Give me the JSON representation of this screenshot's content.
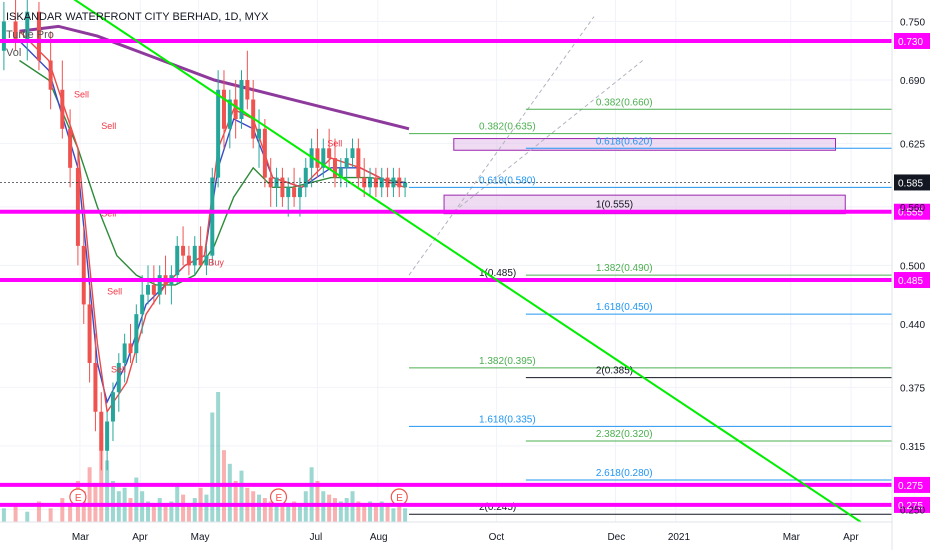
{
  "header": {
    "title": "ISKANDAR WATERFRONT CITY BERHAD, 1D, MYX",
    "indicator": "Turtle Pro",
    "volume_label": "Vol"
  },
  "colors": {
    "magenta": "#ff00ff",
    "trendline": "#00ee00",
    "ema_purple": "#8e3a9c",
    "ema_green": "#2e8b3a",
    "ema_blue": "#3a49c8",
    "ema_red": "#e84a4a",
    "bull": "#26a69a",
    "bear": "#ef5350",
    "fib_green": "#4caf50",
    "fib_blue": "#2196f3",
    "fib_black": "#131722",
    "zone_fill": "#e1bee7",
    "zone_stroke": "#9c27b0",
    "price_tag": "#131722"
  },
  "chart_data": {
    "type": "candlestick",
    "title": "ISKANDAR WATERFRONT CITY BERHAD, 1D, MYX",
    "ylim": [
      0.237,
      0.772
    ],
    "y_ticks": [
      0.75,
      0.69,
      0.625,
      0.56,
      0.5,
      0.44,
      0.375,
      0.315,
      0.25
    ],
    "x_ticks": [
      "Mar",
      "Apr",
      "May",
      "Jul",
      "Aug",
      "Oct",
      "Dec",
      "2021",
      "Mar",
      "Apr"
    ],
    "x_tick_days": [
      1,
      32,
      62,
      123,
      154,
      215,
      276,
      307,
      366,
      397
    ],
    "x_range_days": [
      -40,
      418
    ],
    "last_price": 0.585,
    "horizontal_levels": [
      {
        "price": 0.73,
        "label": "0.730"
      },
      {
        "price": 0.555,
        "label": "0.555"
      },
      {
        "price": 0.485,
        "label": "0.485"
      },
      {
        "price": 0.275,
        "label": "0.275"
      },
      {
        "price": 0.275,
        "label": "0.275"
      }
    ],
    "trendline": {
      "start": {
        "day": -15,
        "price": 0.79
      },
      "end": {
        "day": 402,
        "price": 0.237
      }
    },
    "fib_levels": [
      {
        "label": "0.382(0.660)",
        "price": 0.66,
        "start_day": 230,
        "color": "green"
      },
      {
        "label": "0.382(0.635)",
        "price": 0.635,
        "start_day": 170,
        "color": "green"
      },
      {
        "label": "0.618(0.620)",
        "price": 0.62,
        "start_day": 230,
        "color": "blue"
      },
      {
        "label": "0.618(0.580)",
        "price": 0.58,
        "start_day": 170,
        "color": "blue"
      },
      {
        "label": "1(0.555)",
        "price": 0.555,
        "start_day": 230,
        "color": "black"
      },
      {
        "label": "1(0.485)",
        "price": 0.485,
        "start_day": 170,
        "color": "black"
      },
      {
        "label": "1.382(0.490)",
        "price": 0.49,
        "start_day": 230,
        "color": "green"
      },
      {
        "label": "1.618(0.450)",
        "price": 0.45,
        "start_day": 230,
        "color": "blue"
      },
      {
        "label": "1.382(0.395)",
        "price": 0.395,
        "start_day": 170,
        "color": "green"
      },
      {
        "label": "2(0.385)",
        "price": 0.385,
        "start_day": 230,
        "color": "black"
      },
      {
        "label": "1.618(0.335)",
        "price": 0.335,
        "start_day": 170,
        "color": "blue"
      },
      {
        "label": "2.382(0.320)",
        "price": 0.32,
        "start_day": 230,
        "color": "green"
      },
      {
        "label": "2.618(0.280)",
        "price": 0.28,
        "start_day": 230,
        "color": "blue"
      },
      {
        "label": "2(0.245)",
        "price": 0.245,
        "start_day": 170,
        "color": "black"
      }
    ],
    "zones": [
      {
        "price_top": 0.63,
        "price_bottom": 0.618,
        "start_day": 193,
        "end_day": 389
      },
      {
        "price_top": 0.572,
        "price_bottom": 0.553,
        "start_day": 188,
        "end_day": 394
      }
    ],
    "dashed_projection": [
      {
        "start": {
          "day": 170,
          "price": 0.49
        },
        "end": {
          "day": 265,
          "price": 0.755
        }
      },
      {
        "start": {
          "day": 193,
          "price": 0.555
        },
        "end": {
          "day": 290,
          "price": 0.71
        }
      }
    ],
    "candles": [
      {
        "d": -38,
        "o": 0.72,
        "h": 0.77,
        "l": 0.7,
        "c": 0.75
      },
      {
        "d": -32,
        "o": 0.75,
        "h": 0.78,
        "l": 0.72,
        "c": 0.73
      },
      {
        "d": -26,
        "o": 0.73,
        "h": 0.78,
        "l": 0.71,
        "c": 0.76
      },
      {
        "d": -20,
        "o": 0.76,
        "h": 0.77,
        "l": 0.7,
        "c": 0.71
      },
      {
        "d": -14,
        "o": 0.71,
        "h": 0.74,
        "l": 0.66,
        "c": 0.68
      },
      {
        "d": -8,
        "o": 0.68,
        "h": 0.71,
        "l": 0.63,
        "c": 0.64
      },
      {
        "d": -4,
        "o": 0.64,
        "h": 0.66,
        "l": 0.58,
        "c": 0.6
      },
      {
        "d": 0,
        "o": 0.6,
        "h": 0.62,
        "l": 0.5,
        "c": 0.52
      },
      {
        "d": 3,
        "o": 0.52,
        "h": 0.54,
        "l": 0.44,
        "c": 0.46
      },
      {
        "d": 6,
        "o": 0.46,
        "h": 0.48,
        "l": 0.38,
        "c": 0.4
      },
      {
        "d": 9,
        "o": 0.4,
        "h": 0.43,
        "l": 0.33,
        "c": 0.35
      },
      {
        "d": 12,
        "o": 0.35,
        "h": 0.37,
        "l": 0.29,
        "c": 0.31
      },
      {
        "d": 15,
        "o": 0.31,
        "h": 0.35,
        "l": 0.29,
        "c": 0.34
      },
      {
        "d": 18,
        "o": 0.34,
        "h": 0.38,
        "l": 0.32,
        "c": 0.37
      },
      {
        "d": 21,
        "o": 0.37,
        "h": 0.41,
        "l": 0.35,
        "c": 0.4
      },
      {
        "d": 24,
        "o": 0.4,
        "h": 0.43,
        "l": 0.38,
        "c": 0.42
      },
      {
        "d": 27,
        "o": 0.42,
        "h": 0.44,
        "l": 0.4,
        "c": 0.41
      },
      {
        "d": 30,
        "o": 0.41,
        "h": 0.46,
        "l": 0.4,
        "c": 0.45
      },
      {
        "d": 33,
        "o": 0.45,
        "h": 0.49,
        "l": 0.43,
        "c": 0.47
      },
      {
        "d": 36,
        "o": 0.47,
        "h": 0.5,
        "l": 0.46,
        "c": 0.48
      },
      {
        "d": 39,
        "o": 0.48,
        "h": 0.5,
        "l": 0.46,
        "c": 0.47
      },
      {
        "d": 42,
        "o": 0.47,
        "h": 0.5,
        "l": 0.46,
        "c": 0.49
      },
      {
        "d": 45,
        "o": 0.49,
        "h": 0.51,
        "l": 0.47,
        "c": 0.48
      },
      {
        "d": 48,
        "o": 0.48,
        "h": 0.5,
        "l": 0.46,
        "c": 0.49
      },
      {
        "d": 51,
        "o": 0.49,
        "h": 0.53,
        "l": 0.48,
        "c": 0.52
      },
      {
        "d": 54,
        "o": 0.52,
        "h": 0.54,
        "l": 0.5,
        "c": 0.51
      },
      {
        "d": 57,
        "o": 0.51,
        "h": 0.52,
        "l": 0.49,
        "c": 0.5
      },
      {
        "d": 60,
        "o": 0.5,
        "h": 0.53,
        "l": 0.49,
        "c": 0.52
      },
      {
        "d": 63,
        "o": 0.52,
        "h": 0.54,
        "l": 0.5,
        "c": 0.5
      },
      {
        "d": 66,
        "o": 0.5,
        "h": 0.52,
        "l": 0.49,
        "c": 0.51
      },
      {
        "d": 69,
        "o": 0.51,
        "h": 0.6,
        "l": 0.5,
        "c": 0.59
      },
      {
        "d": 72,
        "o": 0.59,
        "h": 0.7,
        "l": 0.58,
        "c": 0.68
      },
      {
        "d": 75,
        "o": 0.68,
        "h": 0.7,
        "l": 0.62,
        "c": 0.64
      },
      {
        "d": 78,
        "o": 0.64,
        "h": 0.68,
        "l": 0.62,
        "c": 0.67
      },
      {
        "d": 81,
        "o": 0.67,
        "h": 0.69,
        "l": 0.63,
        "c": 0.65
      },
      {
        "d": 84,
        "o": 0.65,
        "h": 0.7,
        "l": 0.64,
        "c": 0.69
      },
      {
        "d": 87,
        "o": 0.69,
        "h": 0.72,
        "l": 0.66,
        "c": 0.67
      },
      {
        "d": 90,
        "o": 0.67,
        "h": 0.69,
        "l": 0.62,
        "c": 0.63
      },
      {
        "d": 93,
        "o": 0.63,
        "h": 0.66,
        "l": 0.6,
        "c": 0.64
      },
      {
        "d": 96,
        "o": 0.64,
        "h": 0.65,
        "l": 0.58,
        "c": 0.59
      },
      {
        "d": 99,
        "o": 0.59,
        "h": 0.61,
        "l": 0.56,
        "c": 0.58
      },
      {
        "d": 102,
        "o": 0.58,
        "h": 0.6,
        "l": 0.56,
        "c": 0.59
      },
      {
        "d": 105,
        "o": 0.59,
        "h": 0.6,
        "l": 0.56,
        "c": 0.57
      },
      {
        "d": 108,
        "o": 0.57,
        "h": 0.59,
        "l": 0.55,
        "c": 0.58
      },
      {
        "d": 111,
        "o": 0.58,
        "h": 0.6,
        "l": 0.56,
        "c": 0.57
      },
      {
        "d": 114,
        "o": 0.57,
        "h": 0.59,
        "l": 0.55,
        "c": 0.58
      },
      {
        "d": 117,
        "o": 0.58,
        "h": 0.61,
        "l": 0.57,
        "c": 0.6
      },
      {
        "d": 120,
        "o": 0.6,
        "h": 0.63,
        "l": 0.58,
        "c": 0.62
      },
      {
        "d": 123,
        "o": 0.62,
        "h": 0.64,
        "l": 0.59,
        "c": 0.6
      },
      {
        "d": 126,
        "o": 0.6,
        "h": 0.63,
        "l": 0.59,
        "c": 0.62
      },
      {
        "d": 129,
        "o": 0.62,
        "h": 0.64,
        "l": 0.6,
        "c": 0.61
      },
      {
        "d": 132,
        "o": 0.61,
        "h": 0.63,
        "l": 0.58,
        "c": 0.59
      },
      {
        "d": 135,
        "o": 0.59,
        "h": 0.61,
        "l": 0.58,
        "c": 0.6
      },
      {
        "d": 138,
        "o": 0.6,
        "h": 0.62,
        "l": 0.58,
        "c": 0.61
      },
      {
        "d": 141,
        "o": 0.61,
        "h": 0.63,
        "l": 0.6,
        "c": 0.62
      },
      {
        "d": 144,
        "o": 0.62,
        "h": 0.63,
        "l": 0.58,
        "c": 0.59
      },
      {
        "d": 147,
        "o": 0.59,
        "h": 0.61,
        "l": 0.57,
        "c": 0.58
      },
      {
        "d": 150,
        "o": 0.58,
        "h": 0.6,
        "l": 0.57,
        "c": 0.59
      },
      {
        "d": 153,
        "o": 0.59,
        "h": 0.6,
        "l": 0.57,
        "c": 0.58
      },
      {
        "d": 156,
        "o": 0.58,
        "h": 0.6,
        "l": 0.57,
        "c": 0.59
      },
      {
        "d": 159,
        "o": 0.59,
        "h": 0.6,
        "l": 0.57,
        "c": 0.58
      },
      {
        "d": 162,
        "o": 0.58,
        "h": 0.6,
        "l": 0.57,
        "c": 0.59
      },
      {
        "d": 165,
        "o": 0.59,
        "h": 0.6,
        "l": 0.57,
        "c": 0.58
      },
      {
        "d": 168,
        "o": 0.58,
        "h": 0.59,
        "l": 0.57,
        "c": 0.585
      }
    ],
    "volume": [
      {
        "d": -38,
        "v": 0.4
      },
      {
        "d": -32,
        "v": 0.5
      },
      {
        "d": -26,
        "v": 0.3
      },
      {
        "d": -20,
        "v": 0.6
      },
      {
        "d": -14,
        "v": 0.4
      },
      {
        "d": -8,
        "v": 0.7
      },
      {
        "d": -4,
        "v": 0.5
      },
      {
        "d": 0,
        "v": 1.2
      },
      {
        "d": 3,
        "v": 0.9
      },
      {
        "d": 6,
        "v": 1.6
      },
      {
        "d": 9,
        "v": 1.1
      },
      {
        "d": 12,
        "v": 2.6
      },
      {
        "d": 15,
        "v": 1.8
      },
      {
        "d": 18,
        "v": 1.2
      },
      {
        "d": 21,
        "v": 0.9
      },
      {
        "d": 24,
        "v": 1.0
      },
      {
        "d": 27,
        "v": 0.7
      },
      {
        "d": 30,
        "v": 1.3
      },
      {
        "d": 33,
        "v": 0.9
      },
      {
        "d": 36,
        "v": 0.6
      },
      {
        "d": 39,
        "v": 0.5
      },
      {
        "d": 42,
        "v": 0.7
      },
      {
        "d": 45,
        "v": 0.5
      },
      {
        "d": 48,
        "v": 0.6
      },
      {
        "d": 51,
        "v": 1.1
      },
      {
        "d": 54,
        "v": 0.8
      },
      {
        "d": 57,
        "v": 0.5
      },
      {
        "d": 60,
        "v": 0.7
      },
      {
        "d": 63,
        "v": 1.0
      },
      {
        "d": 66,
        "v": 0.8
      },
      {
        "d": 69,
        "v": 3.2
      },
      {
        "d": 72,
        "v": 3.8
      },
      {
        "d": 75,
        "v": 2.1
      },
      {
        "d": 78,
        "v": 1.7
      },
      {
        "d": 81,
        "v": 1.2
      },
      {
        "d": 84,
        "v": 1.5
      },
      {
        "d": 87,
        "v": 1.0
      },
      {
        "d": 90,
        "v": 0.9
      },
      {
        "d": 93,
        "v": 0.8
      },
      {
        "d": 96,
        "v": 0.7
      },
      {
        "d": 99,
        "v": 0.6
      },
      {
        "d": 102,
        "v": 0.5
      },
      {
        "d": 105,
        "v": 0.6
      },
      {
        "d": 108,
        "v": 0.5
      },
      {
        "d": 111,
        "v": 0.6
      },
      {
        "d": 114,
        "v": 0.5
      },
      {
        "d": 117,
        "v": 0.9
      },
      {
        "d": 120,
        "v": 1.6
      },
      {
        "d": 123,
        "v": 1.2
      },
      {
        "d": 126,
        "v": 0.9
      },
      {
        "d": 129,
        "v": 0.8
      },
      {
        "d": 132,
        "v": 0.7
      },
      {
        "d": 135,
        "v": 0.6
      },
      {
        "d": 138,
        "v": 0.7
      },
      {
        "d": 141,
        "v": 0.9
      },
      {
        "d": 144,
        "v": 0.6
      },
      {
        "d": 147,
        "v": 0.5
      },
      {
        "d": 150,
        "v": 0.6
      },
      {
        "d": 153,
        "v": 0.5
      },
      {
        "d": 156,
        "v": 0.6
      },
      {
        "d": 159,
        "v": 0.5
      },
      {
        "d": 162,
        "v": 0.4
      },
      {
        "d": 165,
        "v": 0.5
      },
      {
        "d": 168,
        "v": 0.4
      }
    ],
    "moving_averages": [
      {
        "color": "purple",
        "points": [
          [
            -30,
            0.74
          ],
          [
            -10,
            0.745
          ],
          [
            10,
            0.735
          ],
          [
            30,
            0.72
          ],
          [
            50,
            0.705
          ],
          [
            70,
            0.69
          ],
          [
            90,
            0.68
          ],
          [
            110,
            0.67
          ],
          [
            130,
            0.66
          ],
          [
            150,
            0.65
          ],
          [
            170,
            0.64
          ]
        ]
      },
      {
        "color": "green",
        "points": [
          [
            -30,
            0.71
          ],
          [
            -15,
            0.69
          ],
          [
            0,
            0.62
          ],
          [
            10,
            0.56
          ],
          [
            20,
            0.51
          ],
          [
            30,
            0.49
          ],
          [
            40,
            0.48
          ],
          [
            50,
            0.48
          ],
          [
            60,
            0.49
          ],
          [
            70,
            0.52
          ],
          [
            80,
            0.57
          ],
          [
            90,
            0.6
          ],
          [
            100,
            0.58
          ],
          [
            110,
            0.58
          ],
          [
            130,
            0.59
          ],
          [
            150,
            0.59
          ],
          [
            168,
            0.585
          ]
        ]
      },
      {
        "color": "blue",
        "points": [
          [
            -30,
            0.73
          ],
          [
            -15,
            0.7
          ],
          [
            0,
            0.6
          ],
          [
            5,
            0.5
          ],
          [
            10,
            0.4
          ],
          [
            15,
            0.36
          ],
          [
            25,
            0.4
          ],
          [
            35,
            0.46
          ],
          [
            45,
            0.48
          ],
          [
            55,
            0.5
          ],
          [
            65,
            0.51
          ],
          [
            72,
            0.6
          ],
          [
            80,
            0.65
          ],
          [
            90,
            0.64
          ],
          [
            100,
            0.59
          ],
          [
            115,
            0.58
          ],
          [
            130,
            0.6
          ],
          [
            145,
            0.6
          ],
          [
            160,
            0.585
          ],
          [
            168,
            0.585
          ]
        ]
      },
      {
        "color": "red",
        "points": [
          [
            -30,
            0.74
          ],
          [
            -15,
            0.71
          ],
          [
            0,
            0.62
          ],
          [
            5,
            0.52
          ],
          [
            10,
            0.42
          ],
          [
            15,
            0.35
          ],
          [
            25,
            0.38
          ],
          [
            35,
            0.45
          ],
          [
            45,
            0.48
          ],
          [
            55,
            0.5
          ],
          [
            65,
            0.51
          ],
          [
            72,
            0.62
          ],
          [
            80,
            0.66
          ],
          [
            90,
            0.65
          ],
          [
            100,
            0.59
          ],
          [
            115,
            0.58
          ],
          [
            130,
            0.61
          ],
          [
            145,
            0.6
          ],
          [
            160,
            0.585
          ],
          [
            168,
            0.58
          ]
        ]
      }
    ],
    "signals": [
      {
        "d": -2,
        "price": 0.672,
        "text": "Sell"
      },
      {
        "d": 12,
        "price": 0.64,
        "text": "Sell"
      },
      {
        "d": 12,
        "price": 0.55,
        "text": "Sell"
      },
      {
        "d": 15,
        "price": 0.47,
        "text": "Sell"
      },
      {
        "d": 17,
        "price": 0.39,
        "text": "Sell"
      },
      {
        "d": 67,
        "price": 0.5,
        "text": "Buy"
      },
      {
        "d": 128,
        "price": 0.622,
        "text": "Sell"
      }
    ],
    "event_markers": [
      {
        "d": 0,
        "text": "E"
      },
      {
        "d": 103,
        "text": "E"
      },
      {
        "d": 165,
        "text": "E"
      }
    ]
  }
}
